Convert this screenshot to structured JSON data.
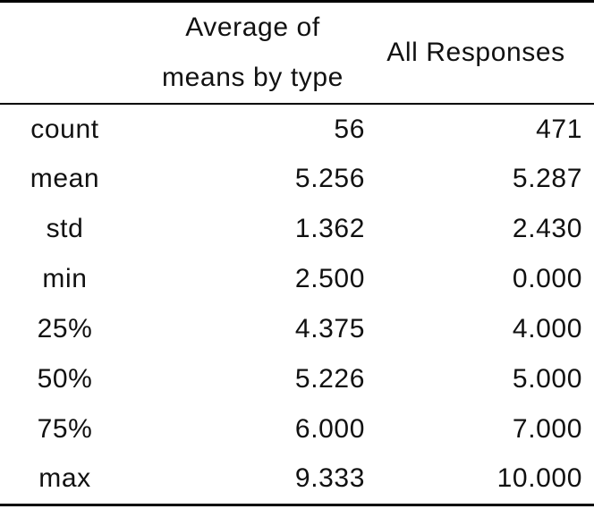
{
  "header": {
    "row_label_column": "",
    "avg_by_type": "Average of\nmeans by type",
    "all_responses": "All Responses"
  },
  "rows": [
    {
      "label": "count",
      "avg": "56",
      "all": "471"
    },
    {
      "label": "mean",
      "avg": "5.256",
      "all": "5.287"
    },
    {
      "label": "std",
      "avg": "1.362",
      "all": "2.430"
    },
    {
      "label": "min",
      "avg": "2.500",
      "all": "0.000"
    },
    {
      "label": "25%",
      "avg": "4.375",
      "all": "4.000"
    },
    {
      "label": "50%",
      "avg": "5.226",
      "all": "5.000"
    },
    {
      "label": "75%",
      "avg": "6.000",
      "all": "7.000"
    },
    {
      "label": "max",
      "avg": "9.333",
      "all": "10.000"
    }
  ],
  "colors": {
    "text": "#111111",
    "rule": "#000000",
    "background": "#ffffff"
  },
  "chart_data": {
    "type": "table",
    "title": "",
    "columns": [
      "",
      "Average of means by type",
      "All Responses"
    ],
    "row_labels": [
      "count",
      "mean",
      "std",
      "min",
      "25%",
      "50%",
      "75%",
      "max"
    ],
    "series": [
      {
        "name": "Average of means by type",
        "values": [
          56,
          5.256,
          1.362,
          2.5,
          4.375,
          5.226,
          6.0,
          9.333
        ]
      },
      {
        "name": "All Responses",
        "values": [
          471,
          5.287,
          2.43,
          0.0,
          4.0,
          5.0,
          7.0,
          10.0
        ]
      }
    ],
    "layout": {
      "rules": [
        "thick-top",
        "thin-under-header",
        "thick-bottom"
      ],
      "row_label_alignment": "center",
      "value_alignment": "right"
    }
  }
}
